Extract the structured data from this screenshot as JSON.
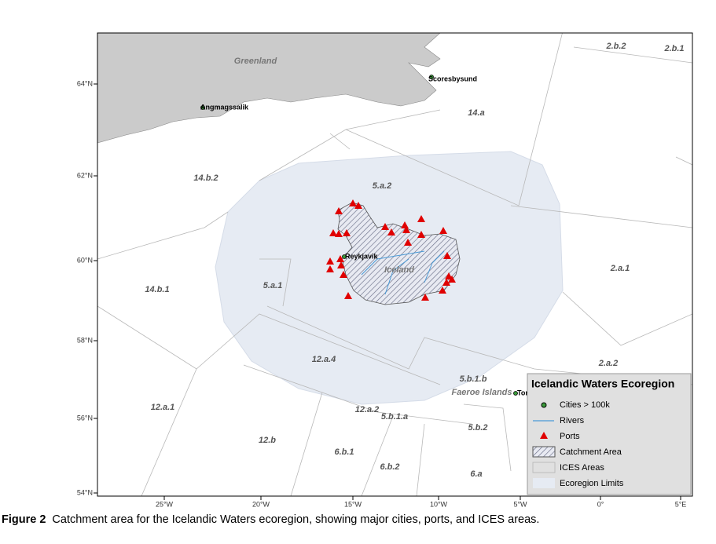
{
  "map": {
    "y_ticks": [
      "64°N",
      "62°N",
      "60°N",
      "58°N",
      "56°N",
      "54°N"
    ],
    "x_ticks": [
      "25°W",
      "20°W",
      "15°W",
      "10°W",
      "5°W",
      "0°",
      "5°E"
    ],
    "area_labels": [
      "2.b.2",
      "2.b.1",
      "14.a",
      "14.b.2",
      "5.a.2",
      "5.a.1",
      "14.b.1",
      "2.a.1",
      "12.a.4",
      "2.a.2",
      "5.b.1.b",
      "12.a.1",
      "12.a.2",
      "5.b.1.a",
      "5.b.2",
      "12.b",
      "6.b.1",
      "6.b.2",
      "6.a"
    ],
    "land_labels": [
      "Greenland",
      "Iceland",
      "Faeroe Islands"
    ],
    "cities": [
      "Scoresbysund",
      "Angmagssalik",
      "Reykjavik",
      "Tor"
    ],
    "legend": {
      "title": "Icelandic Waters Ecoregion",
      "items": [
        "Cities > 100k",
        "Rivers",
        "Ports",
        "Catchment Area",
        "ICES Areas",
        "Ecoregion Limits"
      ]
    }
  },
  "caption": {
    "label": "Figure 2",
    "text": "Catchment area for the Icelandic Waters ecoregion, showing major cities, ports, and ICES areas."
  }
}
